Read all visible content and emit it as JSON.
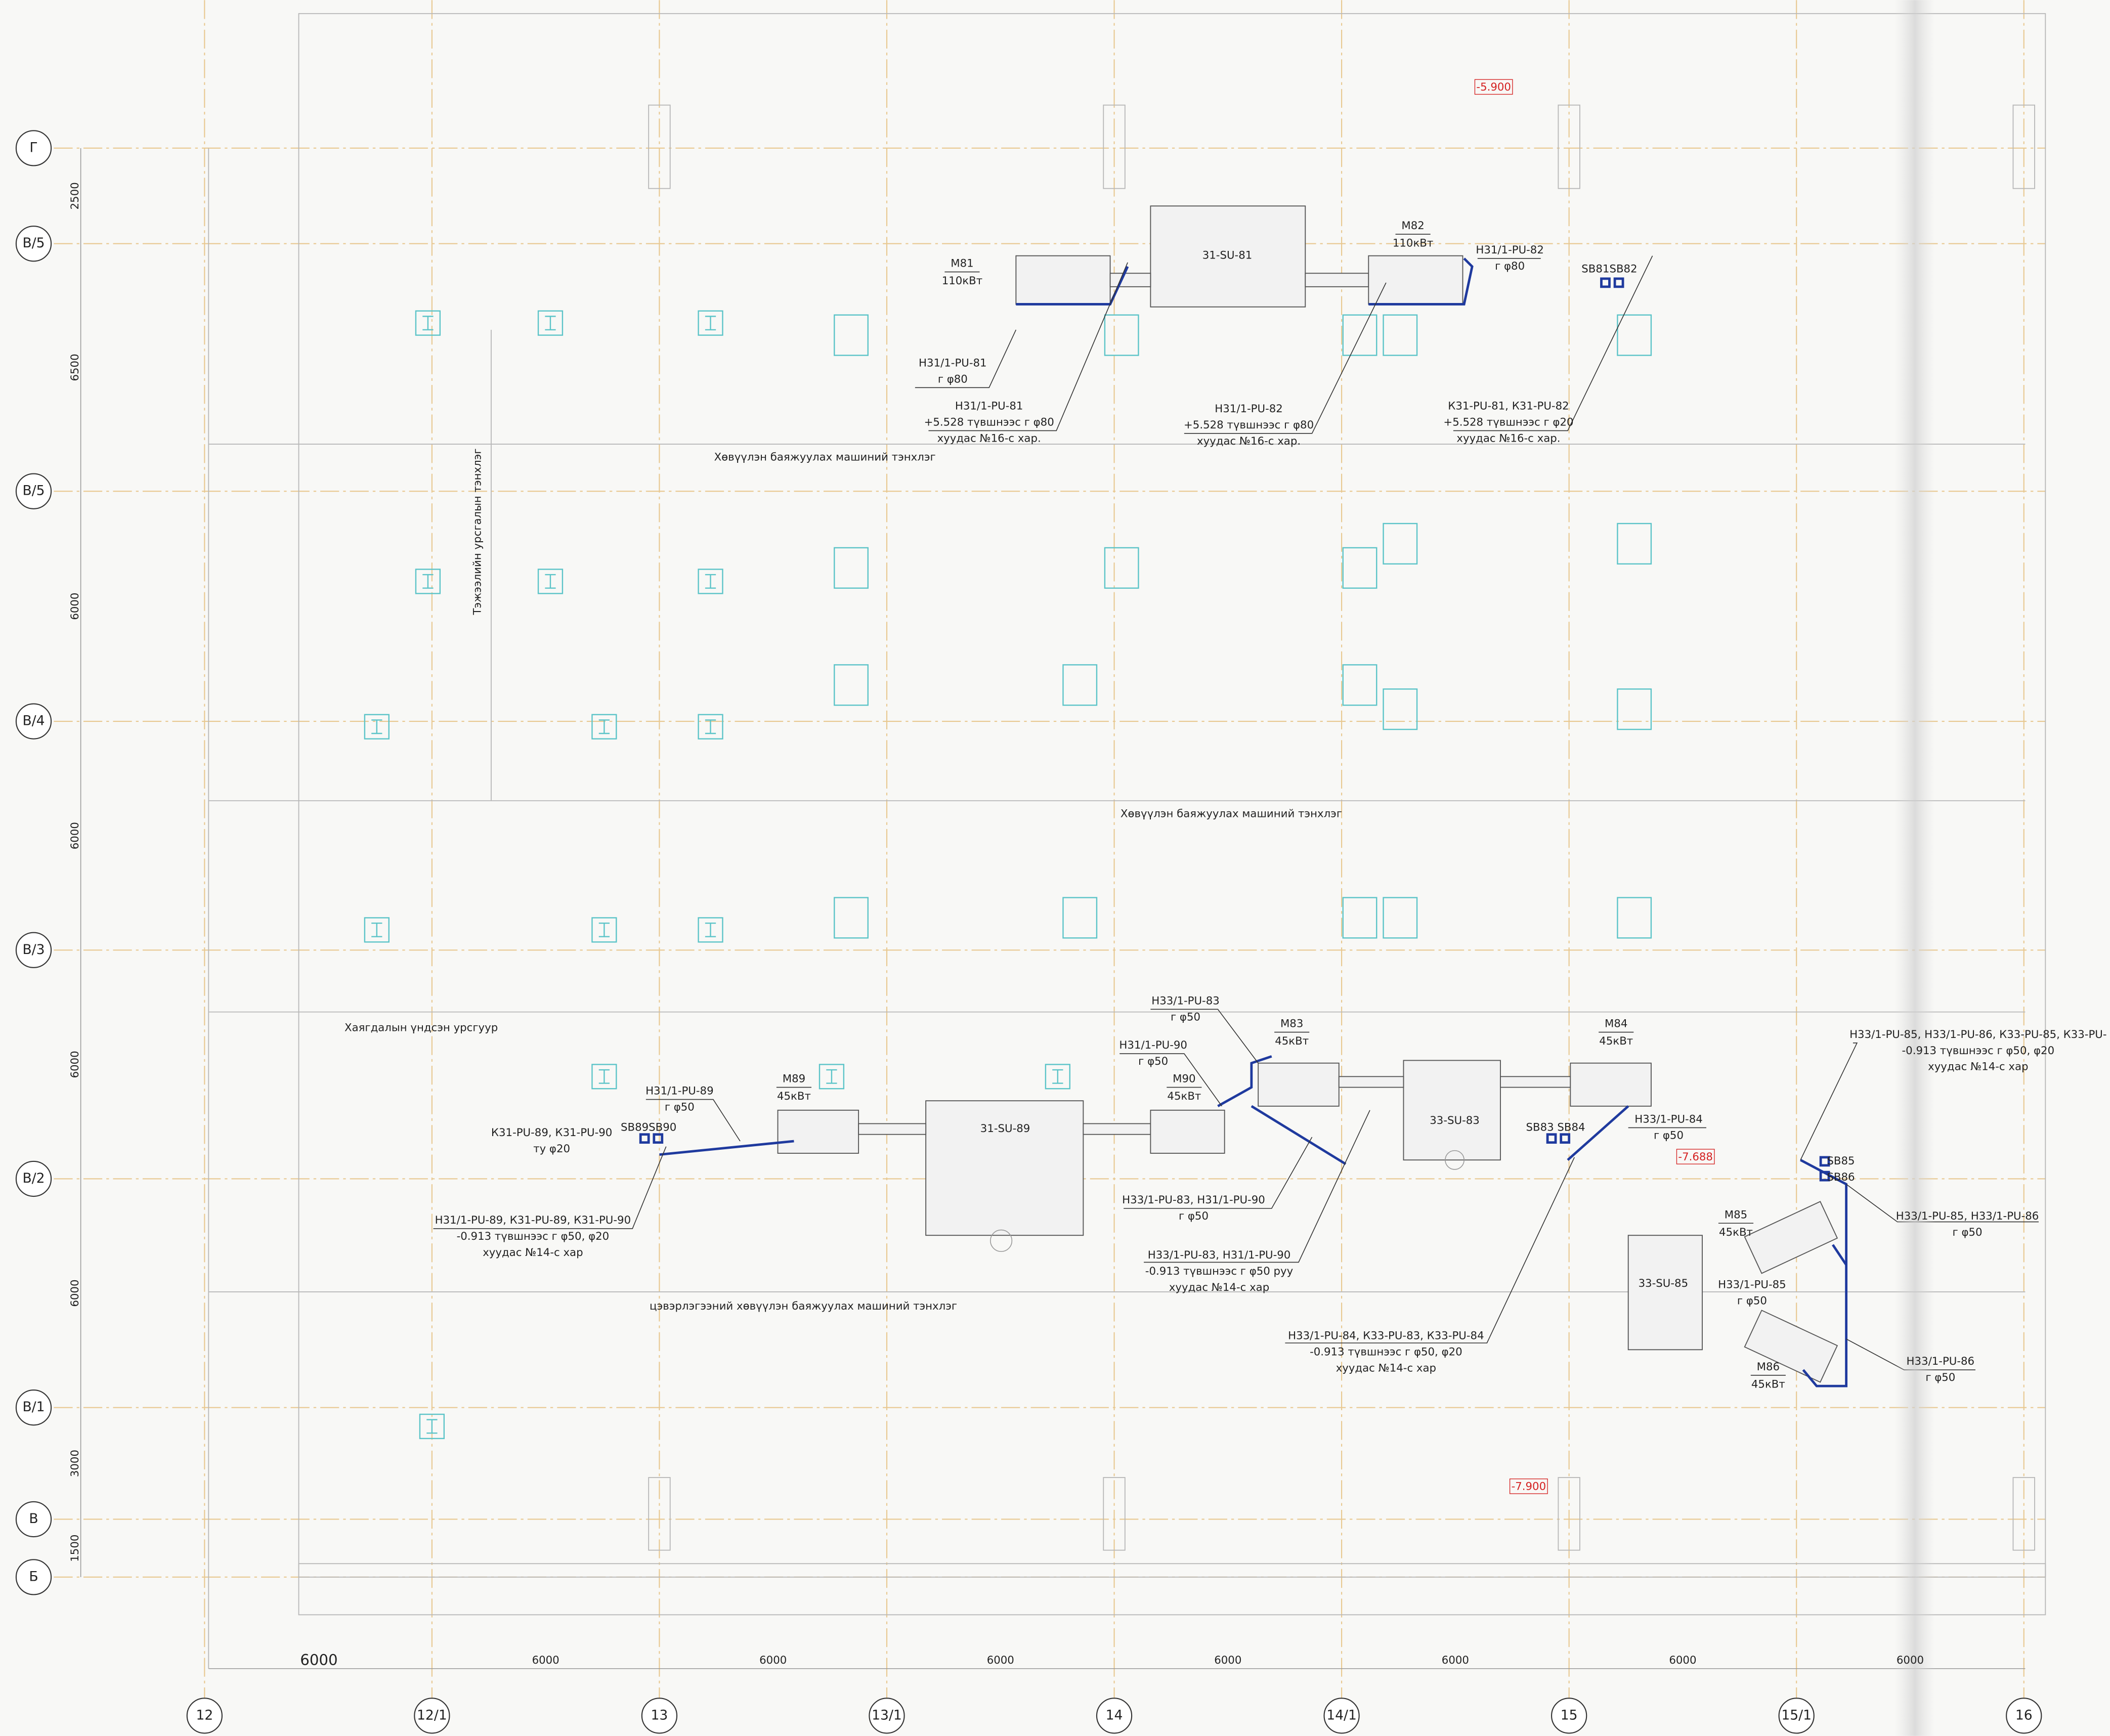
{
  "row_axes": [
    "Г",
    "В/5",
    "В/5",
    "В/4",
    "В/3",
    "В/2",
    "В/1",
    "В",
    "Б"
  ],
  "row_dimensions": [
    2500,
    6500,
    6000,
    6000,
    6000,
    6000,
    3000,
    1500
  ],
  "column_axes": [
    "12",
    "12/1",
    "13",
    "13/1",
    "14",
    "14/1",
    "15",
    "15/1",
    "16"
  ],
  "column_dimensions": [
    6000,
    6000,
    6000,
    6000,
    6000,
    6000,
    6000,
    6000
  ],
  "elevations": [
    "-5.900",
    "-7.688",
    "-7.900"
  ],
  "axis_notes": [
    "Хөвүүлэн баяжуулах машиний тэнхлэг",
    "Хөвүүлэн баяжуулах машиний тэнхлэг",
    "Тэжээлийн урсгалын тэнхлэг",
    "Хаягдалын үндсэн урсгуур",
    "цэвэрлэгээний хөвүүлэн баяжуулах машиний тэнхлэг"
  ],
  "equipment": [
    "31-SU-81",
    "33-SU-83",
    "31-SU-89",
    "33-SU-85"
  ],
  "motors": [
    {
      "name": "M81",
      "power": "110кВт"
    },
    {
      "name": "M82",
      "power": "110кВт"
    },
    {
      "name": "M83",
      "power": "45кВт"
    },
    {
      "name": "M84",
      "power": "45кВт"
    },
    {
      "name": "M89",
      "power": "45кВт"
    },
    {
      "name": "M90",
      "power": "45кВт"
    },
    {
      "name": "M85",
      "power": "45кВт"
    },
    {
      "name": "M86",
      "power": "45кВт"
    }
  ],
  "pipe_labels": [
    {
      "lines": [
        "Н31/1-PU-81",
        "г φ80"
      ]
    },
    {
      "lines": [
        "Н31/1-PU-81",
        "+5.528 түвшнээс г φ80",
        "хуудас №16-с хар."
      ]
    },
    {
      "lines": [
        "Н31/1-PU-82",
        "г φ80"
      ]
    },
    {
      "lines": [
        "Н31/1-PU-82",
        "+5.528 түвшнээс г φ80",
        "хуудас №16-с хар."
      ]
    },
    {
      "lines": [
        "SB81SB82"
      ]
    },
    {
      "lines": [
        "К31-PU-81, К31-PU-82",
        "+5.528 түвшнээс г φ20",
        "хуудас №16-с хар."
      ]
    },
    {
      "lines": [
        "Н33/1-PU-83",
        "г φ50"
      ]
    },
    {
      "lines": [
        "Н31/1-PU-90",
        "г φ50"
      ]
    },
    {
      "lines": [
        "Н31/1-PU-89",
        "г φ50"
      ]
    },
    {
      "lines": [
        "К31-PU-89, К31-PU-90",
        "ту φ20"
      ]
    },
    {
      "lines": [
        "SB89SB90"
      ]
    },
    {
      "lines": [
        "Н31/1-PU-89, К31-PU-89, К31-PU-90",
        "-0.913 түвшнээс г φ50, φ20",
        "хуудас №14-с хар"
      ]
    },
    {
      "lines": [
        "Н33/1-PU-83, Н31/1-PU-90",
        "г φ50"
      ]
    },
    {
      "lines": [
        "Н33/1-PU-83, Н31/1-PU-90",
        "-0.913 түвшнээс г φ50 руу",
        "хуудас №14-с хар"
      ]
    },
    {
      "lines": [
        "Н33/1-PU-84",
        "г φ50"
      ]
    },
    {
      "lines": [
        "SB83 SB84"
      ]
    },
    {
      "lines": [
        "Н33/1-PU-84, К33-PU-83, К33-PU-84",
        "-0.913 түвшнээс г φ50, φ20",
        "хуудас №14-с хар"
      ]
    },
    {
      "lines": [
        "Н33/1-PU-85, Н33/1-PU-86, К33-PU-85, К33-PU-",
        "-0.913 түвшнээс г φ50, φ20",
        "хуудас №14-с хар"
      ]
    },
    {
      "lines": [
        "SB85",
        "SB86"
      ]
    },
    {
      "lines": [
        "Н33/1-PU-85, Н33/1-PU-86",
        "г φ50"
      ]
    },
    {
      "lines": [
        "Н33/1-PU-85",
        "г φ50"
      ]
    },
    {
      "lines": [
        "Н33/1-PU-86",
        "г φ50"
      ]
    }
  ]
}
